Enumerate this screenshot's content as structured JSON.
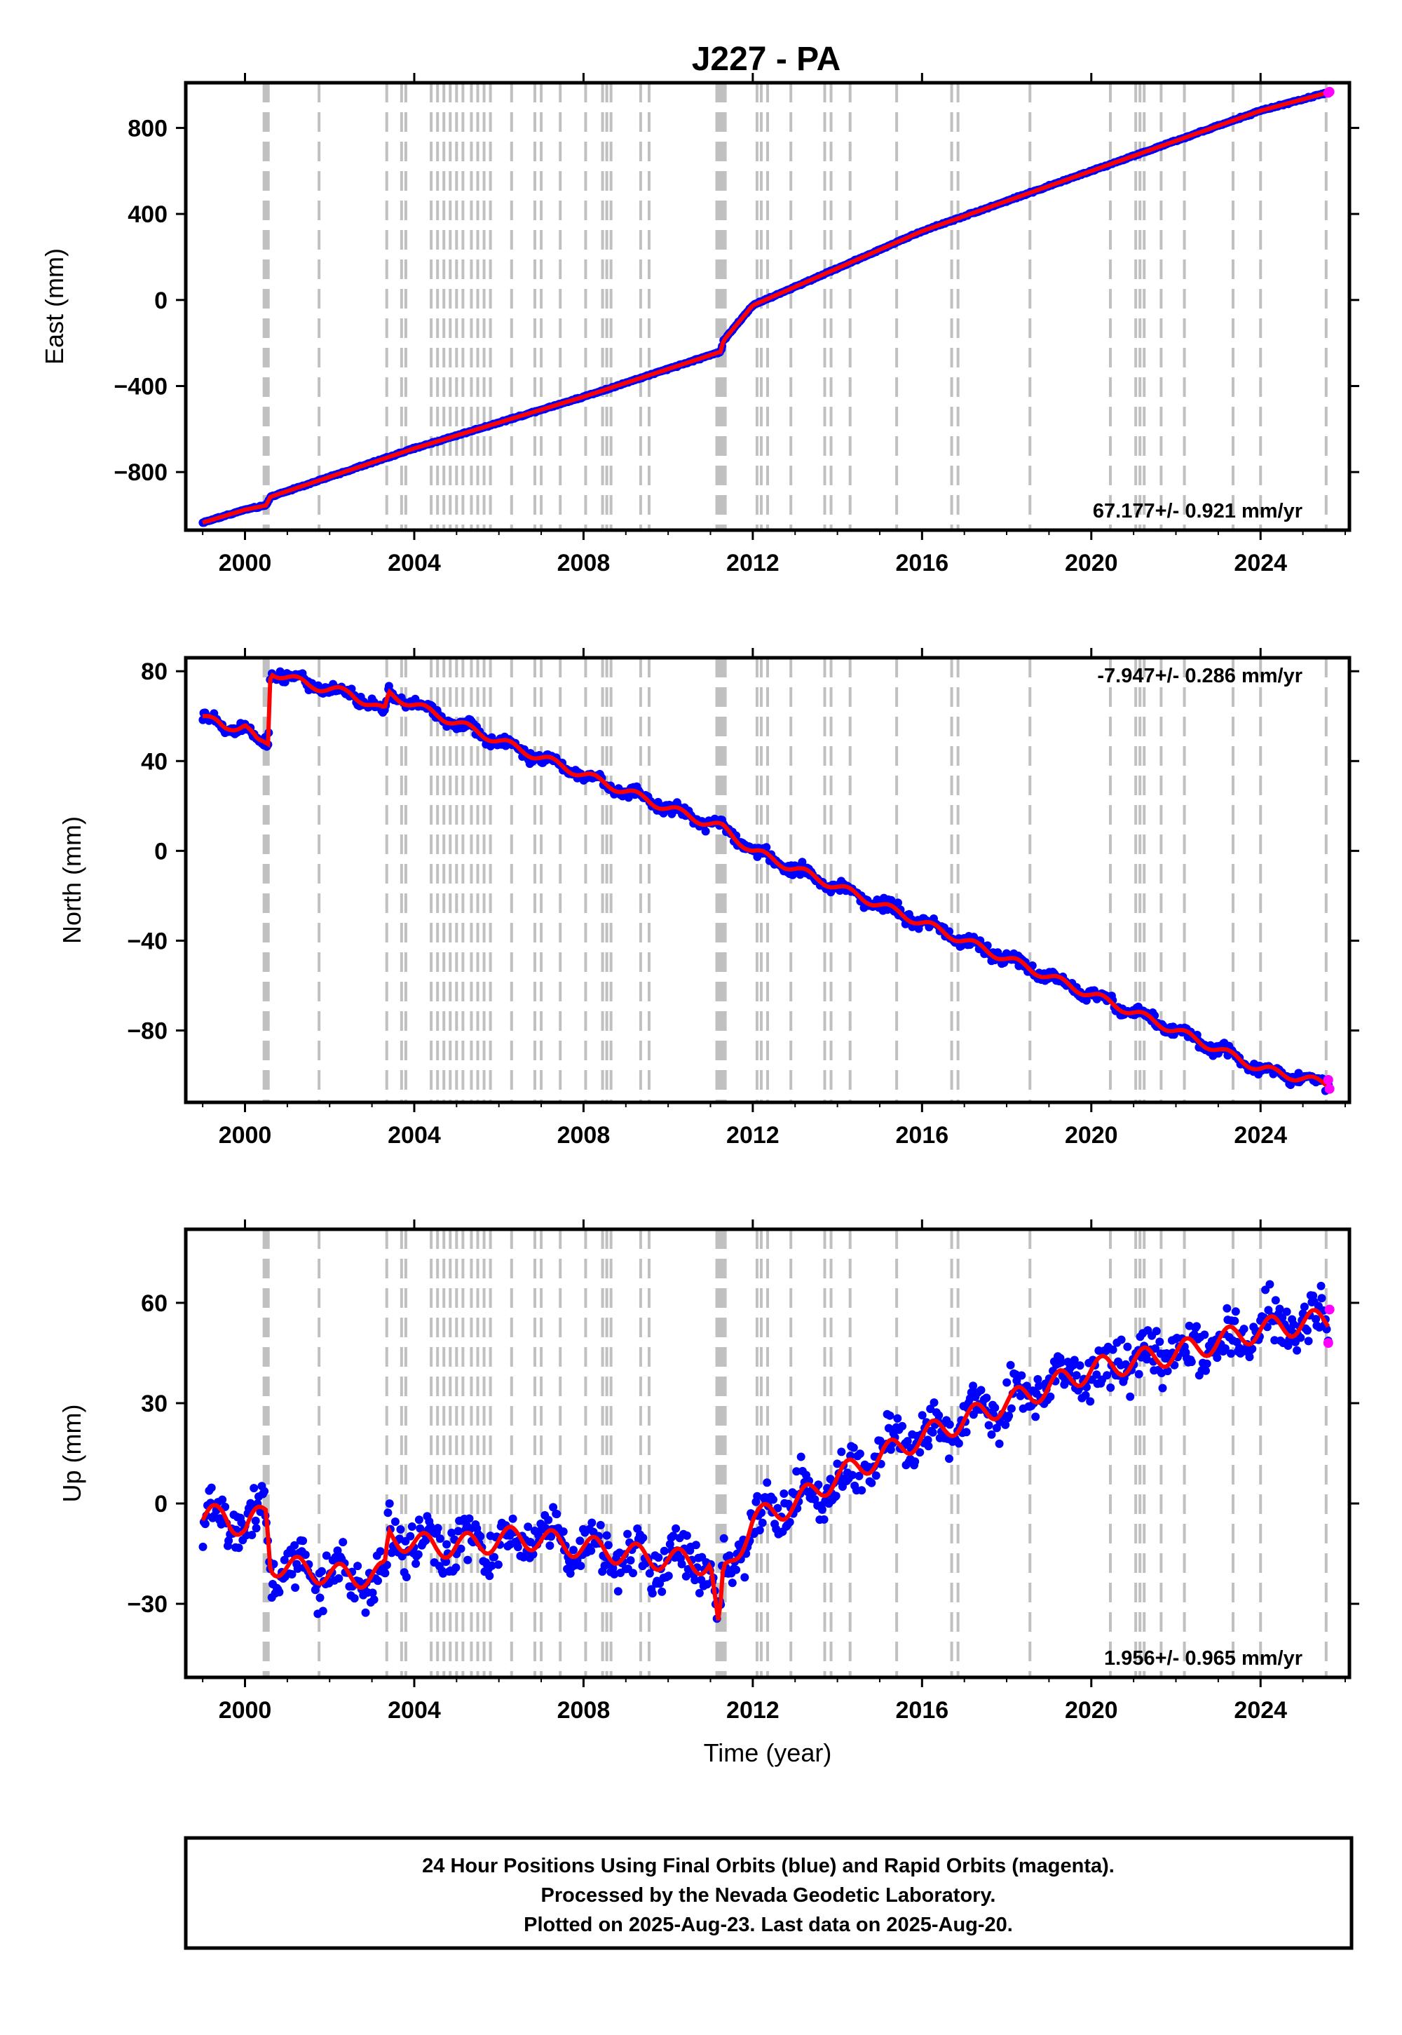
{
  "title": "J227 - PA",
  "colors": {
    "final_orbits": "#0000ff",
    "rapid_orbits": "#ff00ff",
    "model": "#ff0000",
    "event_lines": "#c0c0c0"
  },
  "event_years": [
    2000.45,
    2000.5,
    2000.55,
    2001.75,
    2003.35,
    2003.7,
    2003.8,
    2004.4,
    2004.55,
    2004.7,
    2004.85,
    2005.0,
    2005.15,
    2005.35,
    2005.5,
    2005.65,
    2005.8,
    2006.3,
    2006.85,
    2007.0,
    2007.45,
    2008.05,
    2008.45,
    2008.55,
    2008.65,
    2009.35,
    2009.55,
    2011.15,
    2011.2,
    2011.25,
    2011.3,
    2011.35,
    2012.1,
    2012.2,
    2012.35,
    2012.9,
    2013.7,
    2013.85,
    2014.3,
    2015.4,
    2016.7,
    2016.85,
    2018.55,
    2020.45,
    2021.05,
    2021.15,
    2021.25,
    2021.65,
    2022.2,
    2023.35,
    2024.0,
    2025.55
  ],
  "chart_data": [
    {
      "type": "scatter",
      "name": "east",
      "ylabel": "East (mm)",
      "xlim": [
        1998.6,
        2026.1
      ],
      "ylim": [
        -1070,
        1010
      ],
      "xticks": [
        2000,
        2004,
        2008,
        2012,
        2016,
        2020,
        2024
      ],
      "yticks": [
        -800,
        -400,
        0,
        400,
        800
      ],
      "rate_label": "67.177+/- 0.921 mm/yr",
      "series": [
        {
          "name": "Final Orbits",
          "x": [
            1999.0,
            2000.0,
            2000.5,
            2000.6,
            2004.0,
            2008.0,
            2011.25,
            2011.3,
            2012.0,
            2016.0,
            2020.0,
            2024.0,
            2025.6
          ],
          "y": [
            -1035,
            -975,
            -955,
            -915,
            -690,
            -450,
            -240,
            -190,
            -25,
            320,
            600,
            880,
            965
          ]
        },
        {
          "name": "Rapid Orbits",
          "x": [
            2025.6,
            2025.63
          ],
          "y": [
            963,
            968
          ]
        }
      ]
    },
    {
      "type": "scatter",
      "name": "north",
      "ylabel": "North (mm)",
      "xlim": [
        1998.6,
        2026.1
      ],
      "ylim": [
        -112,
        86
      ],
      "xticks": [
        2000,
        2004,
        2008,
        2012,
        2016,
        2020,
        2024
      ],
      "yticks": [
        -80,
        -40,
        0,
        40,
        80
      ],
      "rate_label": "-7.947+/- 0.286 mm/yr",
      "series": [
        {
          "name": "Final Orbits",
          "x": [
            1999.0,
            1999.5,
            2000.0,
            2000.3,
            2000.55,
            2000.6,
            2001.5,
            2002.5,
            2003.3,
            2003.4,
            2004.0,
            2005.0,
            2006.0,
            2008.0,
            2010.0,
            2011.3,
            2012.0,
            2014.0,
            2016.0,
            2018.0,
            2020.0,
            2022.0,
            2024.0,
            2025.6
          ],
          "y": [
            60,
            55,
            56,
            48,
            48,
            80,
            74,
            70,
            62,
            70,
            65,
            57,
            49,
            34,
            19,
            10,
            0,
            -16,
            -32,
            -48,
            -64,
            -80,
            -97,
            -104
          ]
        },
        {
          "name": "Rapid Orbits",
          "x": [
            2025.6,
            2025.63
          ],
          "y": [
            -102,
            -106
          ]
        }
      ]
    },
    {
      "type": "scatter",
      "name": "up",
      "ylabel": "Up (mm)",
      "xlabel": "Time (year)",
      "xlim": [
        1998.6,
        2026.1
      ],
      "ylim": [
        -52,
        82
      ],
      "xticks": [
        2000,
        2004,
        2008,
        2012,
        2016,
        2020,
        2024
      ],
      "yticks": [
        -30,
        0,
        30,
        60
      ],
      "rate_label": "1.956+/- 0.965 mm/yr",
      "series": [
        {
          "name": "Final Orbits",
          "x": [
            1999.0,
            1999.5,
            2000.0,
            2000.5,
            2000.6,
            2001.5,
            2002.5,
            2003.3,
            2003.4,
            2004.5,
            2005.5,
            2006.5,
            2008.0,
            2009.5,
            2011.0,
            2011.2,
            2011.3,
            2012.0,
            2013.0,
            2014.0,
            2016.0,
            2018.0,
            2020.0,
            2022.0,
            2024.0,
            2025.6
          ],
          "y": [
            -5,
            -3,
            -8,
            -2,
            -18,
            -20,
            -22,
            -21,
            -10,
            -13,
            -12,
            -10,
            -13,
            -16,
            -18,
            -40,
            -22,
            -5,
            0,
            8,
            20,
            30,
            40,
            45,
            52,
            55
          ]
        },
        {
          "name": "Rapid Orbits",
          "x": [
            2025.6,
            2025.63
          ],
          "y": [
            48,
            58
          ]
        }
      ]
    }
  ],
  "footer": {
    "line1": "24 Hour Positions Using Final Orbits (blue) and Rapid Orbits (magenta).",
    "line2": "Processed by the Nevada Geodetic Laboratory.",
    "line3": "Plotted on 2025-Aug-23. Last data on 2025-Aug-20."
  }
}
